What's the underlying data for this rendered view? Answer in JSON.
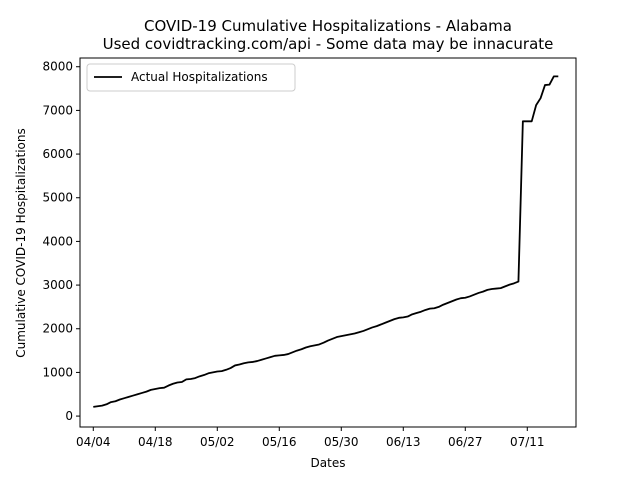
{
  "chart_data": {
    "type": "line",
    "title": "COVID-19 Cumulative Hospitalizations - Alabama",
    "subtitle": "Used covidtracking.com/api - Some data may be innacurate",
    "xlabel": "Dates",
    "ylabel": "Cumulative COVID-19 Hospitalizations",
    "xlim": [
      "2020-04-01",
      "2020-07-22"
    ],
    "ylim": [
      -250,
      8200
    ],
    "x_ticks": [
      {
        "date": "2020-04-04",
        "label": "04/04"
      },
      {
        "date": "2020-04-18",
        "label": "04/18"
      },
      {
        "date": "2020-05-02",
        "label": "05/02"
      },
      {
        "date": "2020-05-16",
        "label": "05/16"
      },
      {
        "date": "2020-05-30",
        "label": "05/30"
      },
      {
        "date": "2020-06-13",
        "label": "06/13"
      },
      {
        "date": "2020-06-27",
        "label": "06/27"
      },
      {
        "date": "2020-07-11",
        "label": "07/11"
      }
    ],
    "y_ticks": [
      0,
      1000,
      2000,
      3000,
      4000,
      5000,
      6000,
      7000,
      8000
    ],
    "legend": {
      "position": "top-left"
    },
    "grid": false,
    "series": [
      {
        "name": "Actual Hospitalizations",
        "color": "#000000",
        "points": [
          [
            "2020-04-04",
            210
          ],
          [
            "2020-04-05",
            225
          ],
          [
            "2020-04-06",
            240
          ],
          [
            "2020-04-07",
            270
          ],
          [
            "2020-04-08",
            320
          ],
          [
            "2020-04-09",
            340
          ],
          [
            "2020-04-10",
            380
          ],
          [
            "2020-04-11",
            410
          ],
          [
            "2020-04-12",
            440
          ],
          [
            "2020-04-13",
            470
          ],
          [
            "2020-04-14",
            500
          ],
          [
            "2020-04-15",
            530
          ],
          [
            "2020-04-16",
            560
          ],
          [
            "2020-04-17",
            600
          ],
          [
            "2020-04-18",
            620
          ],
          [
            "2020-04-19",
            640
          ],
          [
            "2020-04-20",
            650
          ],
          [
            "2020-04-21",
            700
          ],
          [
            "2020-04-22",
            740
          ],
          [
            "2020-04-23",
            770
          ],
          [
            "2020-04-24",
            780
          ],
          [
            "2020-04-25",
            840
          ],
          [
            "2020-04-26",
            850
          ],
          [
            "2020-04-27",
            870
          ],
          [
            "2020-04-28",
            910
          ],
          [
            "2020-04-29",
            940
          ],
          [
            "2020-04-30",
            980
          ],
          [
            "2020-05-01",
            1000
          ],
          [
            "2020-05-02",
            1020
          ],
          [
            "2020-05-03",
            1030
          ],
          [
            "2020-05-04",
            1060
          ],
          [
            "2020-05-05",
            1100
          ],
          [
            "2020-05-06",
            1160
          ],
          [
            "2020-05-07",
            1180
          ],
          [
            "2020-05-08",
            1210
          ],
          [
            "2020-05-09",
            1230
          ],
          [
            "2020-05-10",
            1240
          ],
          [
            "2020-05-11",
            1260
          ],
          [
            "2020-05-12",
            1290
          ],
          [
            "2020-05-13",
            1320
          ],
          [
            "2020-05-14",
            1350
          ],
          [
            "2020-05-15",
            1380
          ],
          [
            "2020-05-16",
            1390
          ],
          [
            "2020-05-17",
            1400
          ],
          [
            "2020-05-18",
            1420
          ],
          [
            "2020-05-19",
            1460
          ],
          [
            "2020-05-20",
            1500
          ],
          [
            "2020-05-21",
            1530
          ],
          [
            "2020-05-22",
            1570
          ],
          [
            "2020-05-23",
            1600
          ],
          [
            "2020-05-24",
            1620
          ],
          [
            "2020-05-25",
            1640
          ],
          [
            "2020-05-26",
            1680
          ],
          [
            "2020-05-27",
            1730
          ],
          [
            "2020-05-28",
            1770
          ],
          [
            "2020-05-29",
            1810
          ],
          [
            "2020-05-30",
            1830
          ],
          [
            "2020-05-31",
            1850
          ],
          [
            "2020-06-01",
            1870
          ],
          [
            "2020-06-02",
            1890
          ],
          [
            "2020-06-03",
            1920
          ],
          [
            "2020-06-04",
            1950
          ],
          [
            "2020-06-05",
            1990
          ],
          [
            "2020-06-06",
            2030
          ],
          [
            "2020-06-07",
            2060
          ],
          [
            "2020-06-08",
            2100
          ],
          [
            "2020-06-09",
            2140
          ],
          [
            "2020-06-10",
            2180
          ],
          [
            "2020-06-11",
            2220
          ],
          [
            "2020-06-12",
            2250
          ],
          [
            "2020-06-13",
            2260
          ],
          [
            "2020-06-14",
            2280
          ],
          [
            "2020-06-15",
            2330
          ],
          [
            "2020-06-16",
            2360
          ],
          [
            "2020-06-17",
            2390
          ],
          [
            "2020-06-18",
            2430
          ],
          [
            "2020-06-19",
            2460
          ],
          [
            "2020-06-20",
            2470
          ],
          [
            "2020-06-21",
            2500
          ],
          [
            "2020-06-22",
            2550
          ],
          [
            "2020-06-23",
            2590
          ],
          [
            "2020-06-24",
            2630
          ],
          [
            "2020-06-25",
            2670
          ],
          [
            "2020-06-26",
            2700
          ],
          [
            "2020-06-27",
            2710
          ],
          [
            "2020-06-28",
            2740
          ],
          [
            "2020-06-29",
            2780
          ],
          [
            "2020-06-30",
            2820
          ],
          [
            "2020-07-01",
            2850
          ],
          [
            "2020-07-02",
            2890
          ],
          [
            "2020-07-03",
            2910
          ],
          [
            "2020-07-04",
            2920
          ],
          [
            "2020-07-05",
            2930
          ],
          [
            "2020-07-06",
            2970
          ],
          [
            "2020-07-07",
            3010
          ],
          [
            "2020-07-08",
            3040
          ],
          [
            "2020-07-09",
            3080
          ],
          [
            "2020-07-10",
            6750
          ],
          [
            "2020-07-11",
            6750
          ],
          [
            "2020-07-12",
            6750
          ],
          [
            "2020-07-13",
            7120
          ],
          [
            "2020-07-14",
            7280
          ],
          [
            "2020-07-15",
            7580
          ],
          [
            "2020-07-16",
            7590
          ],
          [
            "2020-07-17",
            7780
          ],
          [
            "2020-07-18",
            7780
          ]
        ]
      }
    ]
  }
}
